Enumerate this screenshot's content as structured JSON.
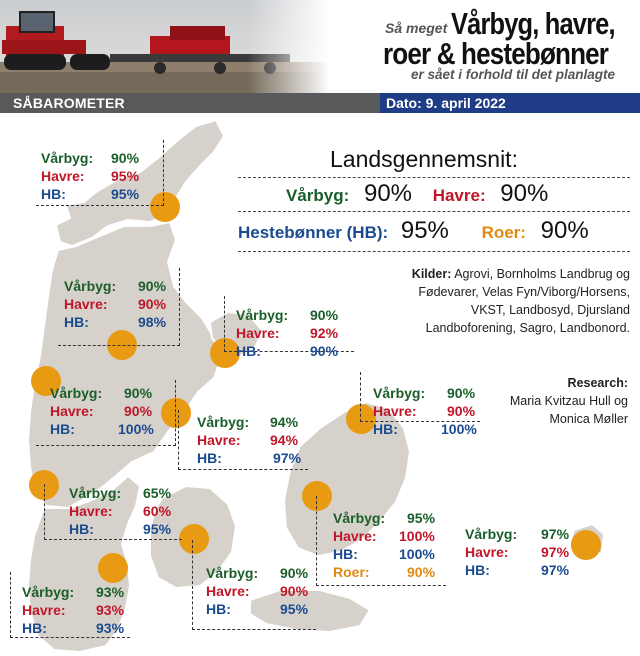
{
  "header": {
    "prefix": "Så meget",
    "title_line1": "Vårbyg, havre,",
    "title_line2": "roer & hestebønner",
    "subtitle": "er sået i forhold til det planlagte"
  },
  "band": {
    "section": "SÅBAROMETER",
    "date": "Dato: 9. april 2022"
  },
  "colors": {
    "varbyg": "#1a5e2a",
    "havre": "#c01629",
    "hb": "#1b4b8f",
    "roer": "#e08a12",
    "dot": "#e89a12",
    "land": "#d6d2cb",
    "band_left": "#58595b",
    "band_right": "#1f3d86"
  },
  "national": {
    "title": "Landsgennemsnit:",
    "varbyg_label": "Vårbyg:",
    "varbyg_value": "90%",
    "havre_label": "Havre:",
    "havre_value": "90%",
    "hb_label": "Hestebønner (HB):",
    "hb_value": "95%",
    "roer_label": "Roer:",
    "roer_value": "90%"
  },
  "labels": {
    "varbyg": "Vårbyg:",
    "havre": "Havre:",
    "hb": "HB:",
    "roer": "Roer:"
  },
  "regions": [
    {
      "varbyg": "90%",
      "havre": "95%",
      "hb": "95%"
    },
    {
      "varbyg": "90%",
      "havre": "90%",
      "hb": "98%"
    },
    {
      "varbyg": "90%",
      "havre": "92%",
      "hb": "90%"
    },
    {
      "varbyg": "90%",
      "havre": "90%",
      "hb": "100%"
    },
    {
      "varbyg": "94%",
      "havre": "94%",
      "hb": "97%"
    },
    {
      "varbyg": "90%",
      "havre": "90%",
      "hb": "100%"
    },
    {
      "varbyg": "65%",
      "havre": "60%",
      "hb": "95%"
    },
    {
      "varbyg": "95%",
      "havre": "100%",
      "hb": "100%",
      "roer": "90%"
    },
    {
      "varbyg": "97%",
      "havre": "97%",
      "hb": "97%"
    },
    {
      "varbyg": "90%",
      "havre": "90%",
      "hb": "95%"
    },
    {
      "varbyg": "93%",
      "havre": "93%",
      "hb": "93%"
    }
  ],
  "sources": {
    "label": "Kilder:",
    "text": "Agrovi, Bornholms Landbrug og Fødevarer, Velas Fyn/Viborg/Horsens, VKST, Landbosyd, Djursland Landboforening, Sagro, Landbonord."
  },
  "research": {
    "label": "Research:",
    "names": "Maria Kvitzau Hull og Monica Møller"
  }
}
